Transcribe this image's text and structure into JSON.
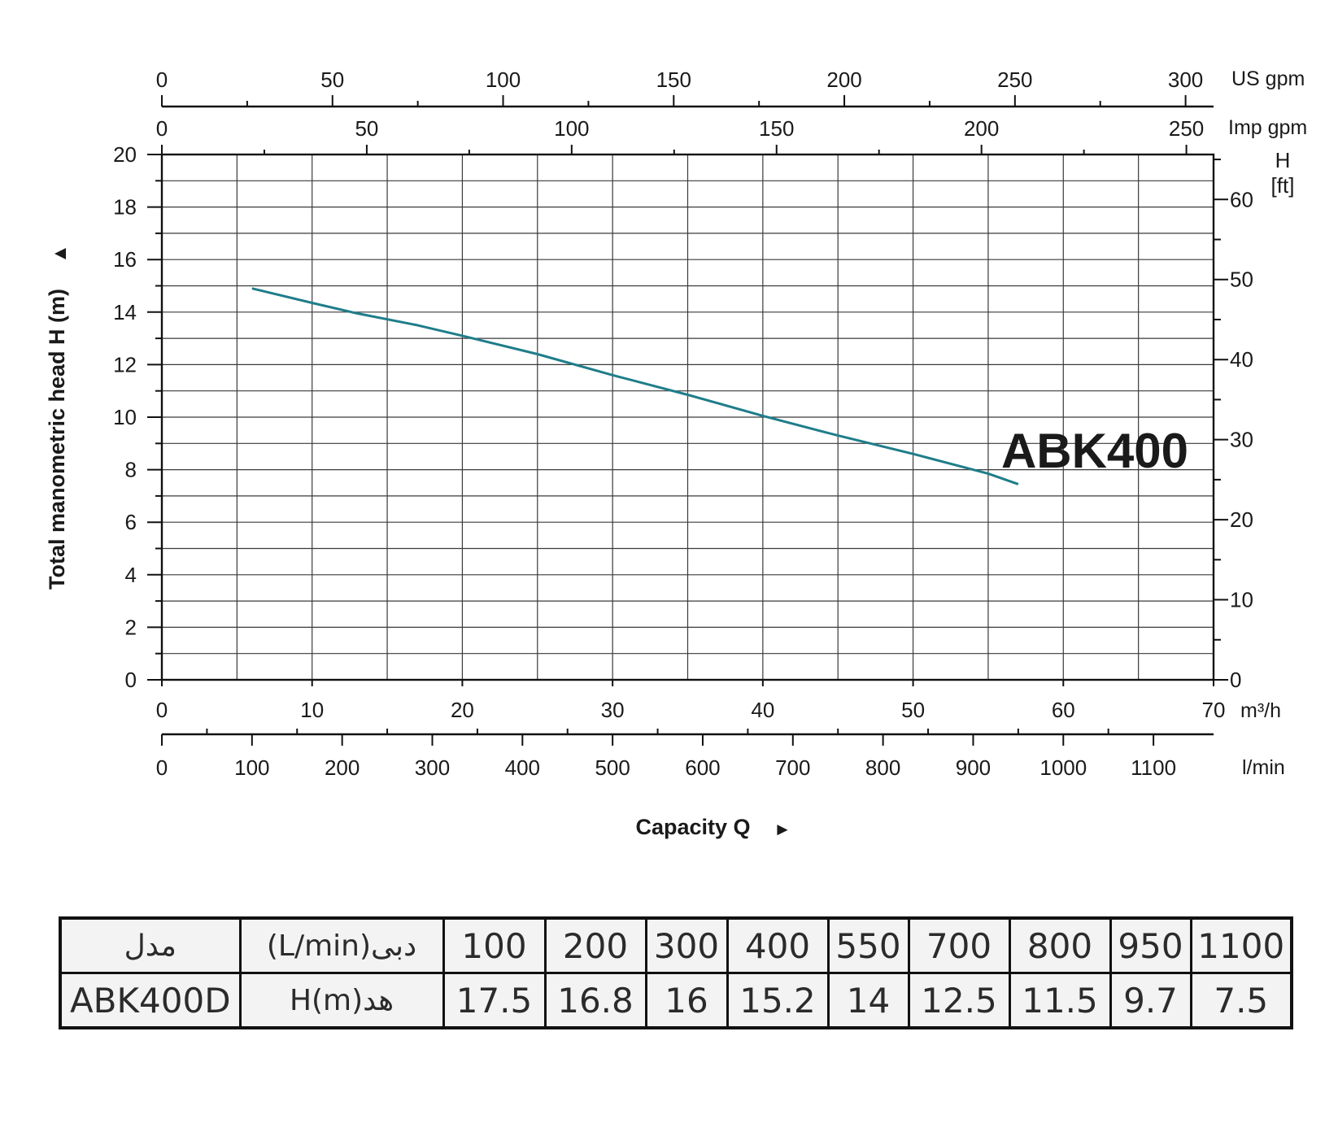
{
  "chart_data": {
    "type": "line",
    "ylabel": "Total manometric head H (m)",
    "ylabel_arrow": "▲",
    "xlabel": "Capacity Q",
    "xlabel_arrow": "►",
    "curve_label": "ABK400",
    "curve_color": "#1f7d8a",
    "grid": true,
    "x_range_m3h": [
      0,
      70
    ],
    "y_range_m": [
      0,
      20
    ],
    "y_left": {
      "unit": "",
      "ticks": [
        "0",
        "2",
        "4",
        "6",
        "8",
        "10",
        "12",
        "14",
        "16",
        "18",
        "20"
      ]
    },
    "y_right": {
      "unit_line1": "H",
      "unit_line2": "[ft]",
      "ticks": [
        "0",
        "10",
        "20",
        "30",
        "40",
        "50",
        "60"
      ]
    },
    "x_bottom_m3h": {
      "unit": "m³/h",
      "ticks": [
        "0",
        "10",
        "20",
        "30",
        "40",
        "50",
        "60",
        "70"
      ]
    },
    "x_bottom_lmin": {
      "unit": "l/min",
      "ticks": [
        "0",
        "100",
        "200",
        "300",
        "400",
        "500",
        "600",
        "700",
        "800",
        "900",
        "1000",
        "1100"
      ]
    },
    "x_top_usgpm": {
      "unit": "US gpm",
      "ticks": [
        "0",
        "50",
        "100",
        "150",
        "200",
        "250",
        "300"
      ]
    },
    "x_top_impgpm": {
      "unit": "Imp gpm",
      "ticks": [
        "0",
        "50",
        "100",
        "150",
        "200",
        "250"
      ]
    },
    "series": [
      {
        "x": [
          6,
          10,
          13,
          17,
          20,
          25,
          30,
          35,
          40,
          45,
          50,
          55,
          57
        ],
        "y": [
          14.9,
          14.35,
          13.95,
          13.5,
          13.1,
          12.4,
          11.6,
          10.85,
          10.05,
          9.3,
          8.6,
          7.85,
          7.45
        ]
      }
    ]
  },
  "table": {
    "header": [
      "مدل",
      "(L/min)دبی",
      "100",
      "200",
      "300",
      "400",
      "550",
      "700",
      "800",
      "950",
      "1100"
    ],
    "row": [
      "ABK400D",
      "H(m)هد",
      "17.5",
      "16.8",
      "16",
      "15.2",
      "14",
      "12.5",
      "11.5",
      "9.7",
      "7.5"
    ]
  }
}
